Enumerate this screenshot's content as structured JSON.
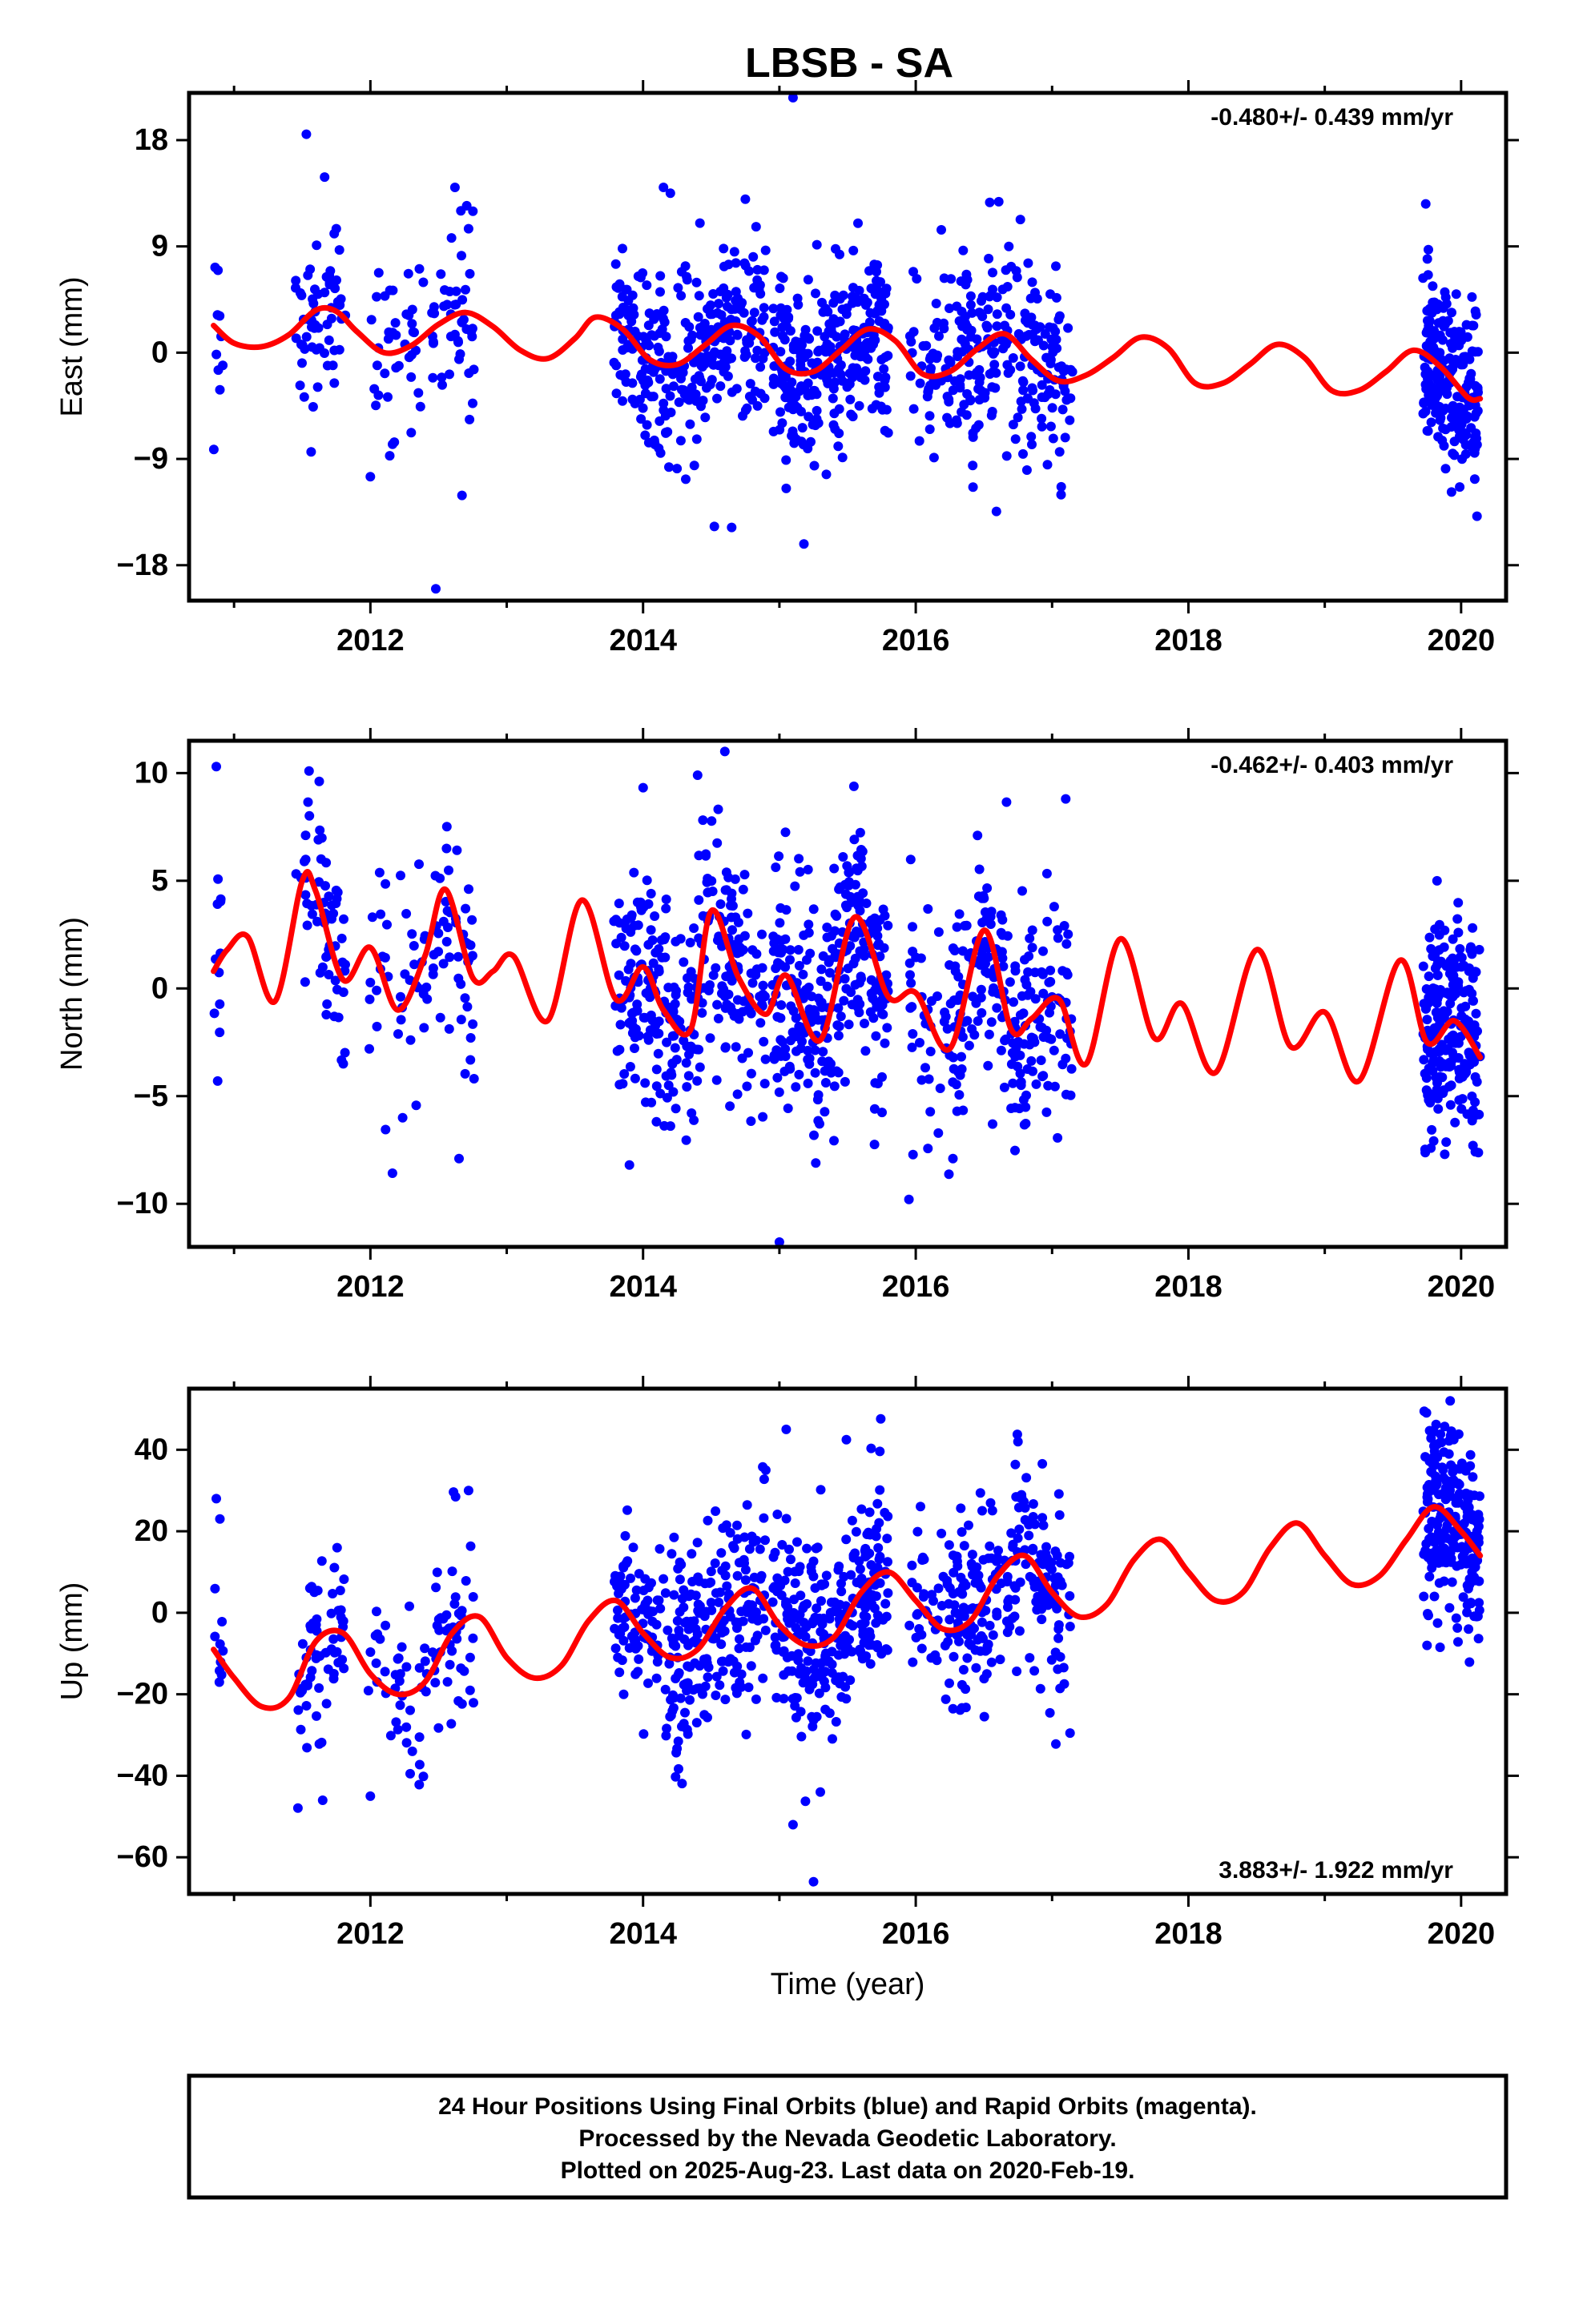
{
  "title": "LBSB - SA",
  "caption": [
    "24 Hour Positions Using Final Orbits (blue) and Rapid Orbits (magenta).",
    "Processed by the Nevada Geodetic Laboratory.",
    "Plotted on 2025-Aug-23. Last data on 2020-Feb-19."
  ],
  "colors": {
    "data": "#0000ff",
    "model": "#ff0000",
    "frame": "#000000"
  },
  "chart_data": [
    {
      "type": "scatter",
      "ylabel": "East (mm)",
      "xlabel": "",
      "xlim": [
        2010.67,
        2020.33
      ],
      "ylim": [
        -21,
        22
      ],
      "xticks": [
        2012,
        2014,
        2016,
        2018,
        2020
      ],
      "yticks": [
        -18,
        -9,
        0,
        9,
        18
      ],
      "rate_text": "-0.480+/- 0.439 mm/yr",
      "rate_position": "top-right",
      "data_segments": [
        {
          "start": 2010.85,
          "end": 2010.92,
          "n": 10
        },
        {
          "start": 2011.45,
          "end": 2011.82,
          "n": 60
        },
        {
          "start": 2011.98,
          "end": 2012.42,
          "n": 40
        },
        {
          "start": 2012.45,
          "end": 2012.76,
          "n": 45
        },
        {
          "start": 2013.78,
          "end": 2014.9,
          "n": 300
        },
        {
          "start": 2014.95,
          "end": 2015.8,
          "n": 280
        },
        {
          "start": 2015.95,
          "end": 2016.35,
          "n": 60
        },
        {
          "start": 2016.3,
          "end": 2017.15,
          "n": 200
        },
        {
          "start": 2019.72,
          "end": 2020.14,
          "n": 220
        }
      ],
      "data_spread": 3.8,
      "outliers": [
        {
          "x": 2011.53,
          "y": 18.5
        },
        {
          "x": 2012.72,
          "y": 10.5
        },
        {
          "x": 2012.62,
          "y": 14
        },
        {
          "x": 2012.0,
          "y": -10.5
        },
        {
          "x": 2012.48,
          "y": -20
        },
        {
          "x": 2015.1,
          "y": 22
        },
        {
          "x": 2014.15,
          "y": 14
        },
        {
          "x": 2014.2,
          "y": 13.5
        },
        {
          "x": 2014.75,
          "y": 13
        },
        {
          "x": 2014.65,
          "y": -14.8
        },
        {
          "x": 2015.18,
          "y": -16.2
        },
        {
          "x": 2015.05,
          "y": -11.5
        },
        {
          "x": 2019.93,
          "y": -11.8
        },
        {
          "x": 2011.75,
          "y": 10.5
        }
      ],
      "model": {
        "x": [
          2010.85,
          2011.0,
          2011.2,
          2011.4,
          2011.6,
          2011.75,
          2011.9,
          2012.1,
          2012.3,
          2012.5,
          2012.7,
          2012.9,
          2013.1,
          2013.3,
          2013.5,
          2013.65,
          2013.85,
          2014.05,
          2014.25,
          2014.45,
          2014.65,
          2014.85,
          2015.05,
          2015.25,
          2015.45,
          2015.65,
          2015.85,
          2016.05,
          2016.25,
          2016.45,
          2016.65,
          2016.85,
          2017.05,
          2017.25,
          2017.45,
          2017.65,
          2017.85,
          2018.05,
          2018.25,
          2018.45,
          2018.65,
          2018.85,
          2019.05,
          2019.25,
          2019.45,
          2019.65,
          2019.85,
          2020.05,
          2020.14
        ],
        "y": [
          2.3,
          0.8,
          0.5,
          1.5,
          3.6,
          3.5,
          1.8,
          0.0,
          0.6,
          2.4,
          3.4,
          2.2,
          0.2,
          -0.5,
          1.2,
          3.0,
          2.0,
          -0.6,
          -1.0,
          0.6,
          2.3,
          1.4,
          -1.4,
          -1.6,
          0.2,
          2.0,
          1.0,
          -1.8,
          -1.6,
          0.3,
          1.6,
          -0.6,
          -2.4,
          -1.9,
          -0.4,
          1.3,
          0.4,
          -2.6,
          -2.6,
          -1.0,
          0.7,
          -0.4,
          -3.2,
          -3.2,
          -1.6,
          0.2,
          -1.2,
          -3.8,
          -3.9
        ]
      }
    },
    {
      "type": "scatter",
      "ylabel": "North (mm)",
      "xlabel": "",
      "xlim": [
        2010.67,
        2020.33
      ],
      "ylim": [
        -12,
        11.5
      ],
      "xticks": [
        2012,
        2014,
        2016,
        2018,
        2020
      ],
      "yticks": [
        -10,
        -5,
        0,
        5,
        10
      ],
      "rate_text": "-0.462+/- 0.403 mm/yr",
      "rate_position": "top-right",
      "data_segments": [
        {
          "start": 2010.85,
          "end": 2010.92,
          "n": 10
        },
        {
          "start": 2011.45,
          "end": 2011.82,
          "n": 60
        },
        {
          "start": 2011.98,
          "end": 2012.42,
          "n": 40
        },
        {
          "start": 2012.45,
          "end": 2012.76,
          "n": 45
        },
        {
          "start": 2013.78,
          "end": 2014.9,
          "n": 300
        },
        {
          "start": 2014.95,
          "end": 2015.8,
          "n": 280
        },
        {
          "start": 2015.95,
          "end": 2016.35,
          "n": 60
        },
        {
          "start": 2016.3,
          "end": 2017.15,
          "n": 200
        },
        {
          "start": 2019.72,
          "end": 2020.14,
          "n": 220
        }
      ],
      "data_spread": 2.6,
      "outliers": [
        {
          "x": 2010.87,
          "y": 10.3
        },
        {
          "x": 2011.55,
          "y": 10.1
        },
        {
          "x": 2014.6,
          "y": 11.0
        },
        {
          "x": 2014.4,
          "y": 9.9
        },
        {
          "x": 2017.1,
          "y": 8.8
        },
        {
          "x": 2015.0,
          "y": -11.8
        },
        {
          "x": 2015.95,
          "y": -9.8
        },
        {
          "x": 2013.9,
          "y": -8.2
        },
        {
          "x": 2012.65,
          "y": -7.9
        },
        {
          "x": 2019.88,
          "y": -7.7
        },
        {
          "x": 2010.88,
          "y": -4.3
        }
      ],
      "model": {
        "x": [
          2010.85,
          2010.95,
          2011.1,
          2011.3,
          2011.5,
          2011.6,
          2011.8,
          2012.0,
          2012.2,
          2012.4,
          2012.55,
          2012.75,
          2012.9,
          2013.05,
          2013.3,
          2013.55,
          2013.8,
          2014.0,
          2014.15,
          2014.35,
          2014.5,
          2014.7,
          2014.9,
          2015.05,
          2015.3,
          2015.55,
          2015.8,
          2016.0,
          2016.25,
          2016.5,
          2016.7,
          2016.85,
          2017.05,
          2017.25,
          2017.5,
          2017.75,
          2017.95,
          2018.2,
          2018.5,
          2018.75,
          2019.0,
          2019.25,
          2019.55,
          2019.75,
          2019.95,
          2020.14
        ],
        "y": [
          0.8,
          1.8,
          2.4,
          -0.6,
          5.0,
          4.5,
          0.4,
          1.9,
          -1.0,
          1.5,
          4.6,
          0.5,
          0.8,
          1.5,
          -1.5,
          4.1,
          -0.5,
          1.0,
          -1.0,
          -1.9,
          3.6,
          0.5,
          -1.2,
          0.6,
          -2.4,
          3.3,
          -0.4,
          -0.2,
          -2.8,
          2.7,
          -1.9,
          -1.4,
          -0.5,
          -3.5,
          2.3,
          -2.3,
          -0.7,
          -3.9,
          1.8,
          -2.7,
          -1.1,
          -4.3,
          1.3,
          -2.5,
          -1.5,
          -3.2
        ]
      }
    },
    {
      "type": "scatter",
      "ylabel": "Up (mm)",
      "xlabel": "Time (year)",
      "xlim": [
        2010.67,
        2020.33
      ],
      "ylim": [
        -69,
        55
      ],
      "xticks": [
        2012,
        2014,
        2016,
        2018,
        2020
      ],
      "yticks": [
        -60,
        -40,
        -20,
        0,
        20,
        40
      ],
      "rate_text": "3.883+/- 1.922 mm/yr",
      "rate_position": "bottom-right",
      "data_segments": [
        {
          "start": 2010.85,
          "end": 2010.92,
          "n": 10
        },
        {
          "start": 2011.45,
          "end": 2011.82,
          "n": 60
        },
        {
          "start": 2011.98,
          "end": 2012.42,
          "n": 40
        },
        {
          "start": 2012.45,
          "end": 2012.76,
          "n": 45
        },
        {
          "start": 2013.78,
          "end": 2014.9,
          "n": 300
        },
        {
          "start": 2014.95,
          "end": 2015.8,
          "n": 280
        },
        {
          "start": 2015.95,
          "end": 2016.35,
          "n": 60
        },
        {
          "start": 2016.3,
          "end": 2017.15,
          "n": 200
        },
        {
          "start": 2019.72,
          "end": 2020.14,
          "n": 220
        }
      ],
      "data_spread": 12,
      "outliers": [
        {
          "x": 2010.87,
          "y": 28
        },
        {
          "x": 2012.72,
          "y": 30
        },
        {
          "x": 2015.05,
          "y": 45
        },
        {
          "x": 2015.1,
          "y": -52
        },
        {
          "x": 2015.25,
          "y": -66
        },
        {
          "x": 2015.3,
          "y": -44
        },
        {
          "x": 2011.65,
          "y": -46
        },
        {
          "x": 2012.0,
          "y": -45
        },
        {
          "x": 2014.9,
          "y": 35
        },
        {
          "x": 2019.92,
          "y": 52
        },
        {
          "x": 2016.75,
          "y": 42
        },
        {
          "x": 2019.75,
          "y": -8
        }
      ],
      "model": {
        "x": [
          2010.85,
          2011.0,
          2011.2,
          2011.4,
          2011.6,
          2011.8,
          2012.0,
          2012.2,
          2012.4,
          2012.6,
          2012.8,
          2013.0,
          2013.2,
          2013.4,
          2013.6,
          2013.8,
          2014.0,
          2014.2,
          2014.4,
          2014.6,
          2014.8,
          2015.0,
          2015.2,
          2015.4,
          2015.6,
          2015.8,
          2016.0,
          2016.2,
          2016.4,
          2016.6,
          2016.8,
          2017.0,
          2017.2,
          2017.4,
          2017.6,
          2017.8,
          2018.0,
          2018.2,
          2018.4,
          2018.6,
          2018.8,
          2019.0,
          2019.2,
          2019.4,
          2019.6,
          2019.8,
          2020.0,
          2020.14
        ],
        "y": [
          -9,
          -16,
          -23,
          -21,
          -7,
          -5,
          -15,
          -20,
          -17,
          -5,
          -1,
          -11,
          -16,
          -13,
          -2,
          3,
          -5,
          -11,
          -9,
          1,
          6,
          -3,
          -8,
          -6,
          5,
          10,
          3,
          -4,
          -2,
          9,
          14,
          5,
          -1,
          2,
          13,
          18,
          10,
          3,
          5,
          16,
          22,
          14,
          7,
          9,
          18,
          26,
          20,
          14
        ]
      }
    }
  ]
}
